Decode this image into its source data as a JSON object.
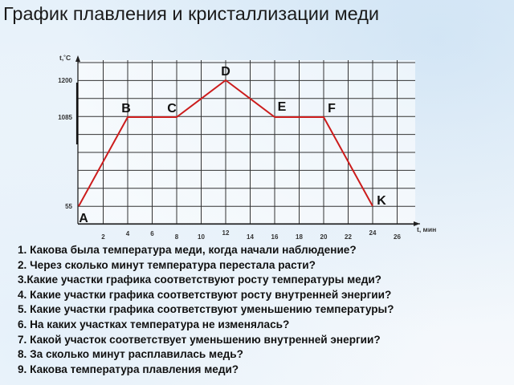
{
  "title": "График плавления и кристаллизации меди",
  "chart_data": {
    "type": "line",
    "xlabel": "t, мин",
    "ylabel": "t,˚C",
    "x_ticks": [
      "2",
      "4",
      "6",
      "8",
      "10",
      "12",
      "14",
      "16",
      "18",
      "20",
      "22",
      "24",
      "26"
    ],
    "x_tick_values": [
      2,
      4,
      6,
      8,
      10,
      12,
      14,
      16,
      18,
      20,
      22,
      24,
      26
    ],
    "y_ticks": [
      "55",
      "1085",
      "1200"
    ],
    "y_tick_values": [
      55,
      1085,
      1200
    ],
    "xlim": [
      0,
      27
    ],
    "grid": true,
    "series": [
      {
        "color": "#cc1c1c",
        "points": [
          {
            "label": "A",
            "x": 0,
            "y": 55
          },
          {
            "label": "B",
            "x": 4,
            "y": 1085
          },
          {
            "label": "C",
            "x": 8,
            "y": 1085
          },
          {
            "label": "D",
            "x": 12,
            "y": 1200
          },
          {
            "label": "E",
            "x": 16,
            "y": 1085
          },
          {
            "label": "F",
            "x": 20,
            "y": 1085
          },
          {
            "label": "K",
            "x": 24,
            "y": 55
          }
        ]
      }
    ]
  },
  "questions": [
    "1. Какова была температура меди, когда начали наблюдение?",
    "2. Через сколько минут температура перестала расти?",
    "3.Какие участки графика соответствуют росту температуры меди?",
    "4. Какие участки графика соответствуют росту внутренней энергии?",
    "5. Какие участки графика соответствуют уменьшению температуры?",
    "6. На каких участках температура не изменялась?",
    "7. Какой участок соответствует уменьшению внутренней энергии?",
    "8. За сколько минут расплавилась медь?",
    "9. Какова температура плавления меди?"
  ]
}
